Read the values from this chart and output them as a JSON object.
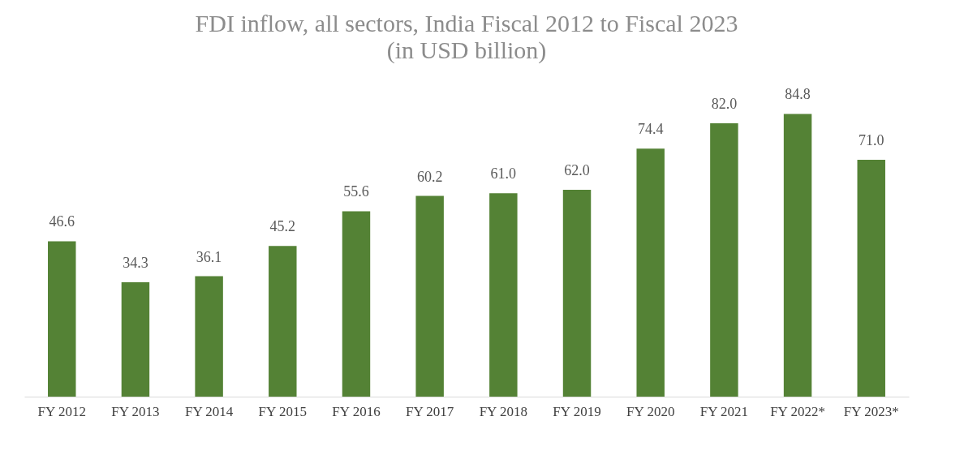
{
  "chart_data": {
    "type": "bar",
    "title": "FDI inflow, all sectors, India Fiscal 2012 to Fiscal 2023",
    "subtitle": "(in USD billion)",
    "categories": [
      "FY 2012",
      "FY 2013",
      "FY 2014",
      "FY 2015",
      "FY 2016",
      "FY 2017",
      "FY 2018",
      "FY 2019",
      "FY 2020",
      "FY 2021",
      "FY 2022*",
      "FY 2023*"
    ],
    "values": [
      46.6,
      34.3,
      36.1,
      45.2,
      55.6,
      60.2,
      61.0,
      62.0,
      74.4,
      82.0,
      84.8,
      71.0
    ],
    "value_labels": [
      "46.6",
      "34.3",
      "36.1",
      "45.2",
      "55.6",
      "60.2",
      "61.0",
      "62.0",
      "74.4",
      "82.0",
      "84.8",
      "71.0"
    ],
    "color": "#548235",
    "grid": false,
    "tick_labels": "x"
  }
}
